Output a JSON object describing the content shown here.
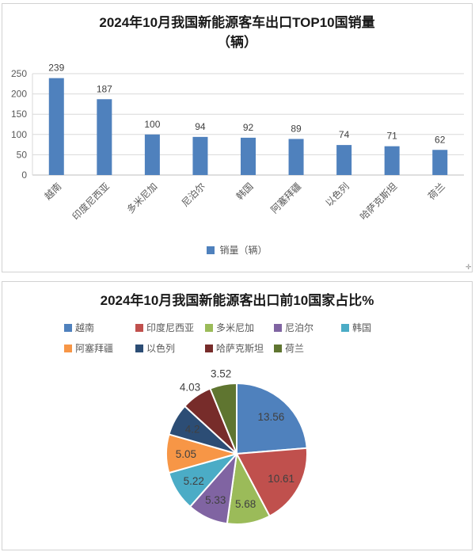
{
  "icons": {
    "resize_handle": "✛"
  },
  "palette": {
    "bar_blue": "#4F81BD",
    "grid_line": "#d9d9d9",
    "axis_line": "#bfbfbf",
    "tick_text": "#595959",
    "value_text": "#404040"
  },
  "chart_data": [
    {
      "type": "bar",
      "title": "2024年10月我国新能源客车出口TOP10国销量（辆）",
      "title_lines": [
        "2024年10月我国新能源客车出口TOP10国销量",
        "（辆）"
      ],
      "categories": [
        "越南",
        "印度尼西亚",
        "多米尼加",
        "尼泊尔",
        "韩国",
        "阿塞拜疆",
        "以色列",
        "哈萨克斯坦",
        "荷兰"
      ],
      "values": [
        239,
        187,
        100,
        94,
        92,
        89,
        74,
        71,
        62
      ],
      "xlabel": "",
      "ylabel": "",
      "ylim": [
        0,
        250
      ],
      "yticks": [
        0,
        50,
        100,
        150,
        200,
        250
      ],
      "grid": true,
      "bar_color": "#4F81BD",
      "legend_position": "bottom",
      "legend": [
        {
          "label": "销量（辆）",
          "color": "#4F81BD"
        }
      ]
    },
    {
      "type": "pie",
      "title": "2024年10月我国新能源客出口前10国家占比%",
      "title_lines": [
        "2024年10月我国新能源客出口前10国家占比%"
      ],
      "labels": [
        "越南",
        "印度尼西亚",
        "多米尼加",
        "尼泊尔",
        "韩国",
        "阿塞拜疆",
        "以色列",
        "哈萨克斯坦",
        "荷兰"
      ],
      "values": [
        13.56,
        10.61,
        5.68,
        5.33,
        5.22,
        5.05,
        4.2,
        4.03,
        3.52
      ],
      "value_labels": [
        "13.56",
        "10.61",
        "5.68",
        "5.33",
        "5.22",
        "5.05",
        "4.2",
        "4.03",
        "3.52"
      ],
      "colors": [
        "#4F81BD",
        "#C0504D",
        "#9BBB59",
        "#8064A2",
        "#4BACC6",
        "#F79646",
        "#2C4D75",
        "#772C2A",
        "#5F7530"
      ],
      "start_angle_deg": 0,
      "direction": "clockwise",
      "legend_position": "top"
    }
  ]
}
